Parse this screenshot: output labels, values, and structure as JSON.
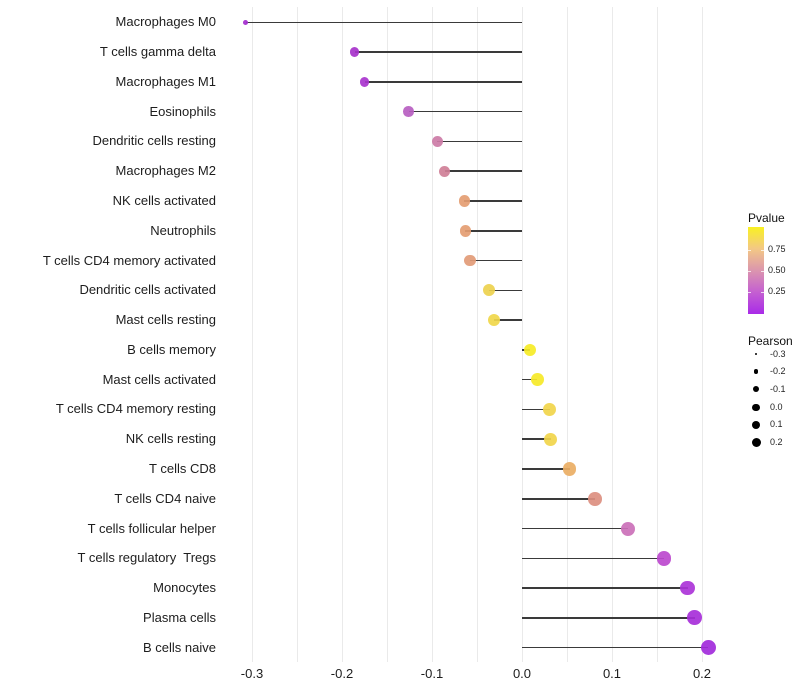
{
  "chart_data": {
    "type": "lollipop",
    "title": "",
    "xlabel": "",
    "ylabel": "",
    "orientation": "horizontal",
    "grid": "vertical-only",
    "x_axis": {
      "range": [
        -0.333,
        0.235
      ],
      "tick_values": [
        -0.3,
        -0.2,
        -0.1,
        0.0,
        0.1,
        0.2
      ],
      "tick_labels": [
        "-0.3",
        "-0.2",
        "-0.1",
        "0.0",
        "0.1",
        "0.2"
      ],
      "gridline_values": [
        -0.3,
        -0.25,
        -0.2,
        -0.15,
        -0.1,
        -0.05,
        0.0,
        0.05,
        0.1,
        0.15,
        0.2
      ]
    },
    "color_legend": {
      "title": "Pvalue",
      "tick_labels": [
        "0.75",
        "0.50",
        "0.25"
      ],
      "tick_values": [
        0.75,
        0.5,
        0.25
      ],
      "range": [
        0,
        1
      ],
      "gradient_stops_top_to_bottom": [
        "#f9f122",
        "#f3c885",
        "#db95ae",
        "#c45fd1",
        "#a92be8"
      ]
    },
    "size_legend": {
      "title": "Pearson",
      "labels": [
        "-0.3",
        "-0.2",
        "-0.1",
        "0.0",
        "0.1",
        "0.2"
      ],
      "values": [
        -0.3,
        -0.2,
        -0.1,
        0.0,
        0.1,
        0.2
      ]
    },
    "points": [
      {
        "label": "Macrophages M0",
        "pearson": -0.307,
        "pvalue": 0.08,
        "color": "#a32cce"
      },
      {
        "label": "T cells gamma delta",
        "pearson": -0.186,
        "pvalue": 0.09,
        "color": "#a733cb"
      },
      {
        "label": "Macrophages M1",
        "pearson": -0.175,
        "pvalue": 0.1,
        "color": "#a935ce"
      },
      {
        "label": "Eosinophils",
        "pearson": -0.126,
        "pvalue": 0.2,
        "color": "#b75ec1"
      },
      {
        "label": "Dendritic cells resting",
        "pearson": -0.094,
        "pvalue": 0.38,
        "color": "#cc7ba6"
      },
      {
        "label": "Macrophages M2",
        "pearson": -0.086,
        "pvalue": 0.42,
        "color": "#cf7f97"
      },
      {
        "label": "NK cells activated",
        "pearson": -0.064,
        "pvalue": 0.6,
        "color": "#e49d72"
      },
      {
        "label": "Neutrophils",
        "pearson": -0.063,
        "pvalue": 0.6,
        "color": "#e49d72"
      },
      {
        "label": "T cells CD4 memory activated",
        "pearson": -0.058,
        "pvalue": 0.58,
        "color": "#e29b77"
      },
      {
        "label": "Dendritic cells activated",
        "pearson": -0.037,
        "pvalue": 0.8,
        "color": "#edd14e"
      },
      {
        "label": "Mast cells resting",
        "pearson": -0.031,
        "pvalue": 0.83,
        "color": "#f0d74a"
      },
      {
        "label": "B cells memory",
        "pearson": 0.009,
        "pvalue": 0.97,
        "color": "#f6eb26"
      },
      {
        "label": "Mast cells activated",
        "pearson": 0.017,
        "pvalue": 0.95,
        "color": "#f6e928"
      },
      {
        "label": "T cells CD4 memory resting",
        "pearson": 0.031,
        "pvalue": 0.84,
        "color": "#f1d54b"
      },
      {
        "label": "NK cells resting",
        "pearson": 0.032,
        "pvalue": 0.84,
        "color": "#f1d54b"
      },
      {
        "label": "T cells CD8",
        "pearson": 0.053,
        "pvalue": 0.7,
        "color": "#eaae64"
      },
      {
        "label": "T cells CD4 naive",
        "pearson": 0.081,
        "pvalue": 0.46,
        "color": "#dc8f80"
      },
      {
        "label": "T cells follicular helper",
        "pearson": 0.118,
        "pvalue": 0.3,
        "color": "#cb70b8"
      },
      {
        "label": "T cells regulatory  Tregs",
        "pearson": 0.158,
        "pvalue": 0.18,
        "color": "#bc49ce"
      },
      {
        "label": "Monocytes",
        "pearson": 0.184,
        "pvalue": 0.11,
        "color": "#ab34d8"
      },
      {
        "label": "Plasma cells",
        "pearson": 0.192,
        "pvalue": 0.1,
        "color": "#a72fd9"
      },
      {
        "label": "B cells naive",
        "pearson": 0.207,
        "pvalue": 0.08,
        "color": "#a22bdb"
      }
    ]
  }
}
